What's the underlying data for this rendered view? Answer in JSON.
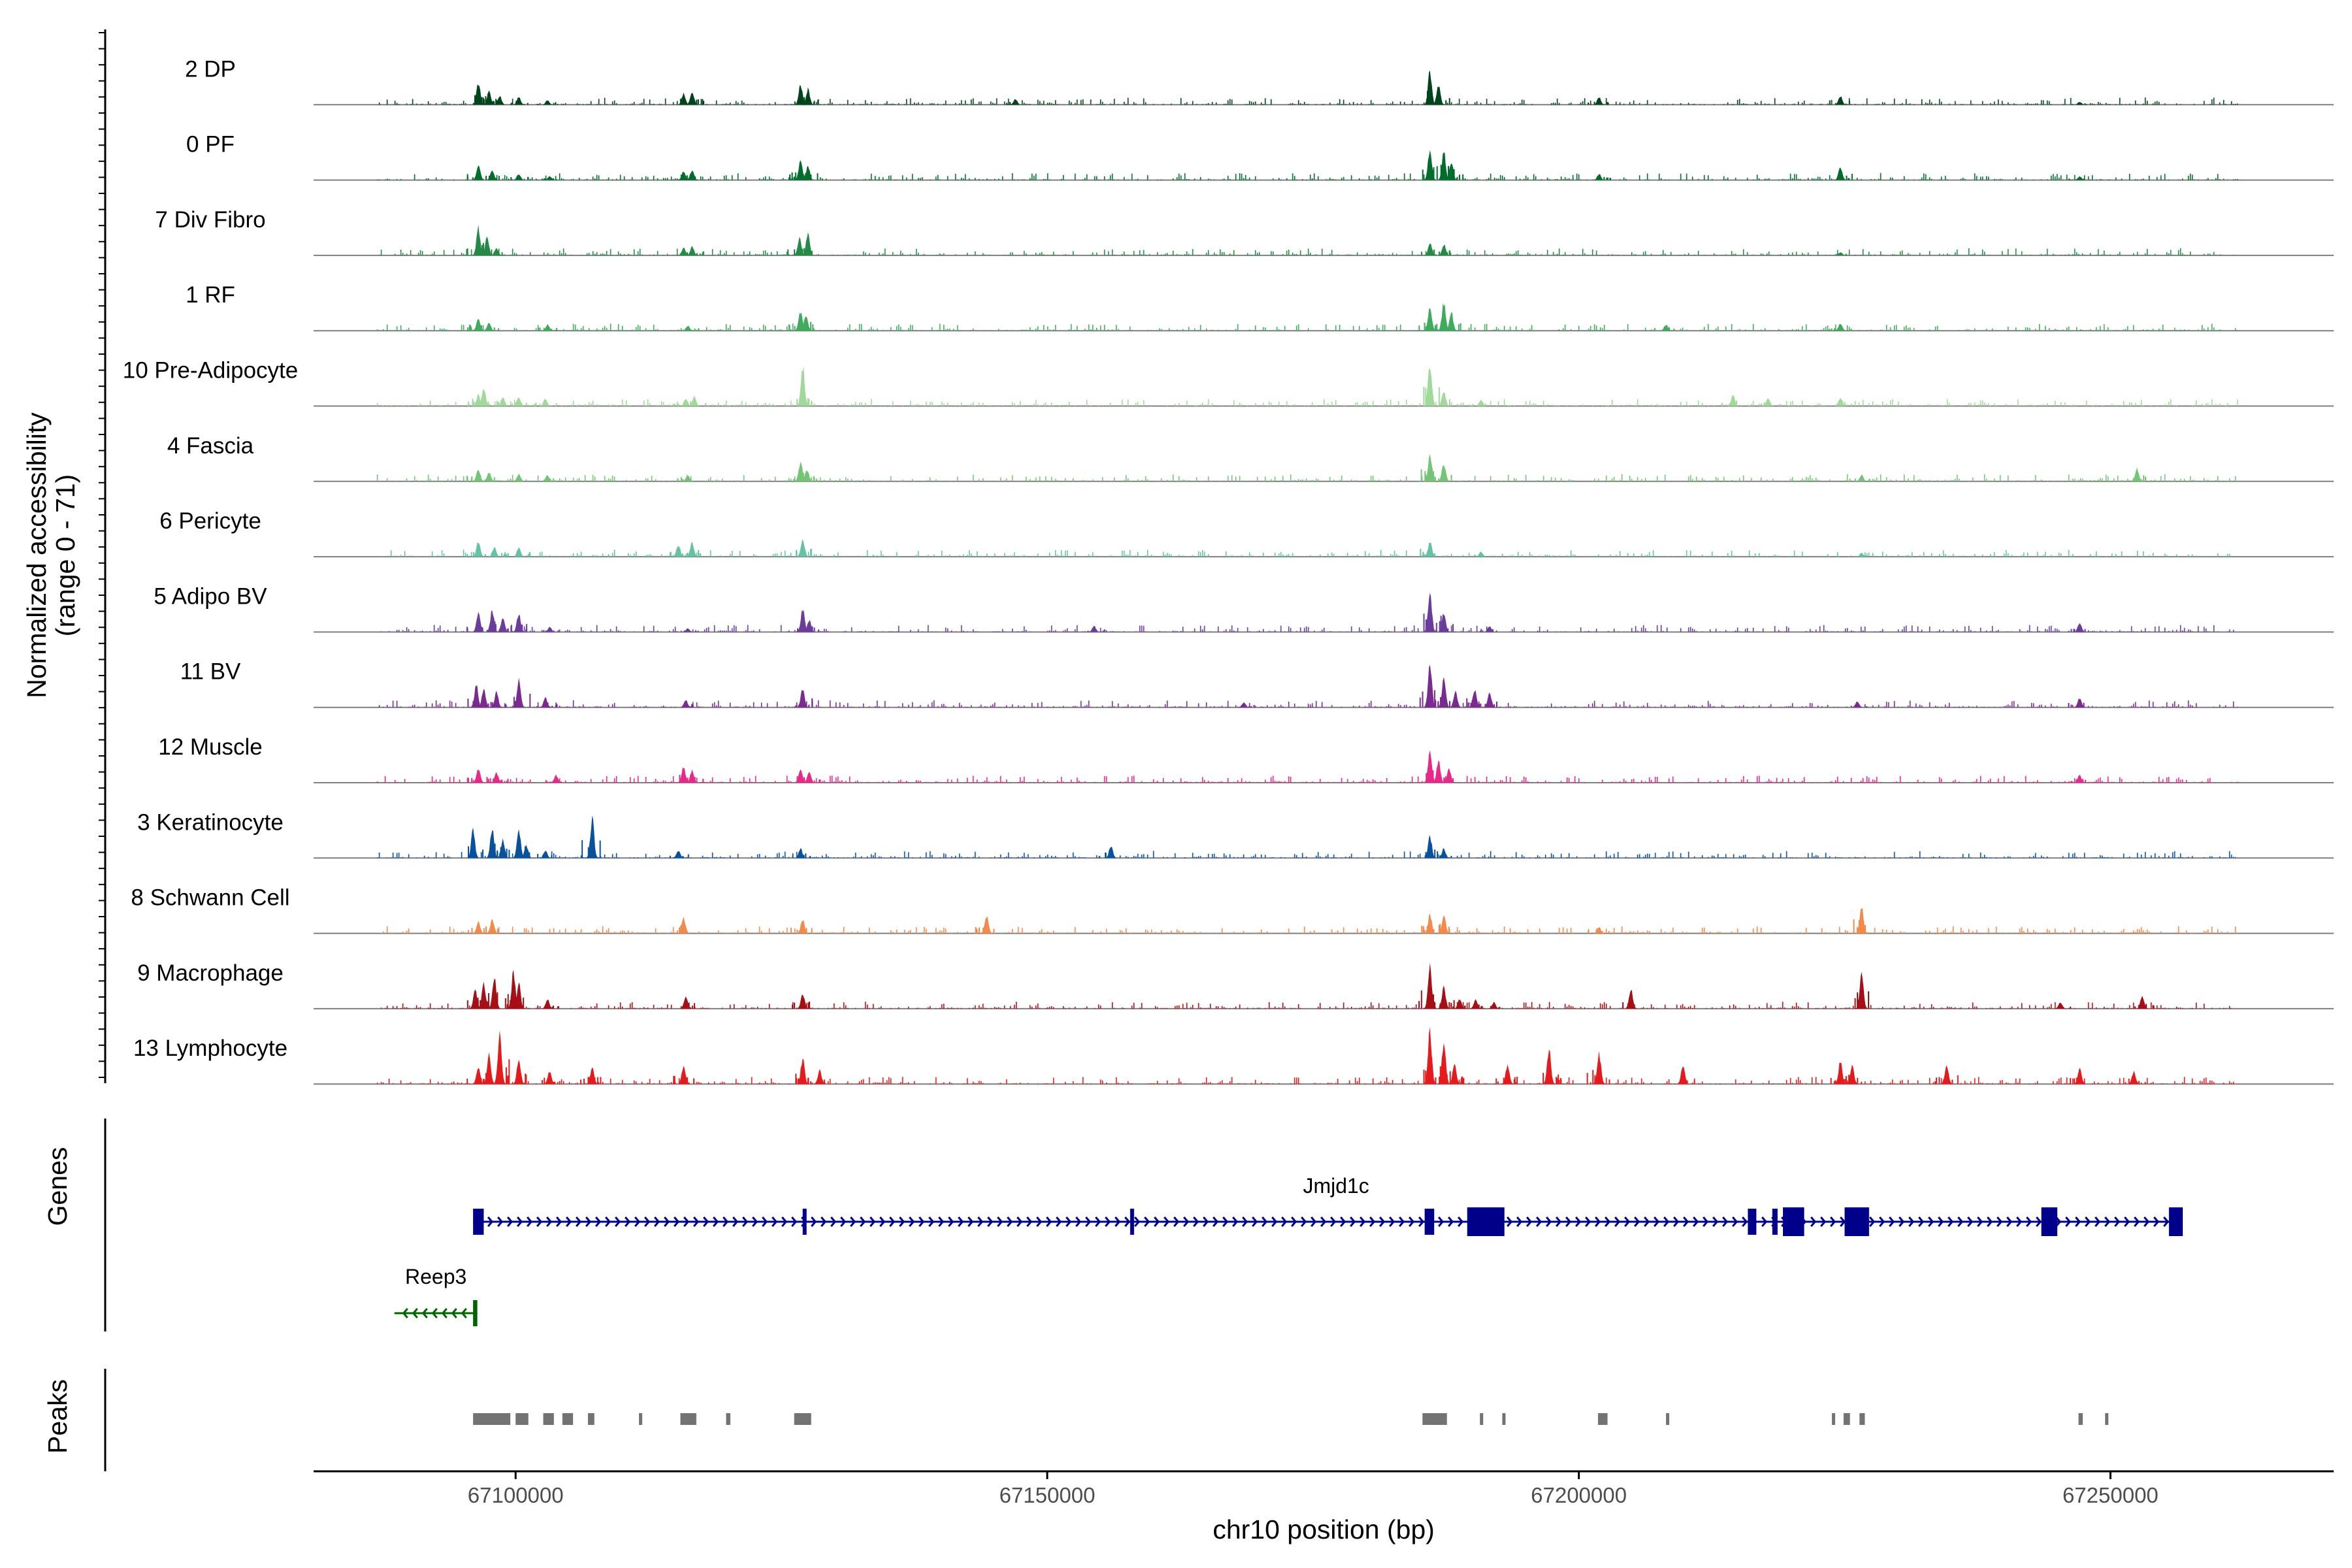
{
  "chart_data": {
    "type": "area",
    "title": "",
    "ylabel_line1": "Normalized accessibility",
    "ylabel_line2": "(range 0 - 71)",
    "y_range": [
      0,
      71
    ],
    "xlabel": "chr10 position (bp)",
    "x_range": [
      67081000,
      67271000
    ],
    "x_ticks": [
      67100000,
      67150000,
      67200000,
      67250000
    ],
    "x_tick_labels": [
      "67100000",
      "67150000",
      "67200000",
      "67250000"
    ],
    "track_region": [
      67087000,
      67262000
    ],
    "genes_label": "Genes",
    "peaks_label": "Peaks",
    "tracks": [
      {
        "name": "2 DP",
        "color": "#00441b",
        "peaks": [
          [
            67096500,
            0.35
          ],
          [
            67097500,
            0.22
          ],
          [
            67098500,
            0.14
          ],
          [
            67100300,
            0.12
          ],
          [
            67103000,
            0.07
          ],
          [
            67115800,
            0.18
          ],
          [
            67116600,
            0.22
          ],
          [
            67126800,
            0.32
          ],
          [
            67127500,
            0.25
          ],
          [
            67147000,
            0.09
          ],
          [
            67186000,
            0.55
          ],
          [
            67186800,
            0.3
          ],
          [
            67201900,
            0.12
          ],
          [
            67224600,
            0.14
          ],
          [
            67247100,
            0.05
          ]
        ]
      },
      {
        "name": "0 PF",
        "color": "#006d2c",
        "peaks": [
          [
            67096500,
            0.25
          ],
          [
            67097800,
            0.15
          ],
          [
            67100300,
            0.1
          ],
          [
            67103200,
            0.06
          ],
          [
            67115800,
            0.14
          ],
          [
            67116600,
            0.16
          ],
          [
            67126800,
            0.3
          ],
          [
            67127500,
            0.22
          ],
          [
            67186000,
            0.5
          ],
          [
            67187300,
            0.45
          ],
          [
            67188000,
            0.3
          ],
          [
            67201900,
            0.1
          ],
          [
            67224600,
            0.22
          ],
          [
            67247100,
            0.06
          ]
        ]
      },
      {
        "name": "7 Div Fibro",
        "color": "#238b45",
        "peaks": [
          [
            67096500,
            0.45
          ],
          [
            67097300,
            0.3
          ],
          [
            67098200,
            0.12
          ],
          [
            67115800,
            0.12
          ],
          [
            67116600,
            0.14
          ],
          [
            67126700,
            0.28
          ],
          [
            67127500,
            0.35
          ],
          [
            67186000,
            0.2
          ],
          [
            67187300,
            0.18
          ],
          [
            67224600,
            0.05
          ]
        ]
      },
      {
        "name": "1 RF",
        "color": "#41ab5d",
        "peaks": [
          [
            67096500,
            0.2
          ],
          [
            67097500,
            0.12
          ],
          [
            67103000,
            0.1
          ],
          [
            67116200,
            0.08
          ],
          [
            67126800,
            0.3
          ],
          [
            67127300,
            0.25
          ],
          [
            67186000,
            0.4
          ],
          [
            67187300,
            0.45
          ],
          [
            67188000,
            0.3
          ],
          [
            67208200,
            0.1
          ],
          [
            67224600,
            0.12
          ]
        ]
      },
      {
        "name": "10 Pre-Adipocyte",
        "color": "#a1d99b",
        "peaks": [
          [
            67096500,
            0.18
          ],
          [
            67097000,
            0.3
          ],
          [
            67098800,
            0.15
          ],
          [
            67100300,
            0.15
          ],
          [
            67102800,
            0.12
          ],
          [
            67116000,
            0.12
          ],
          [
            67116800,
            0.16
          ],
          [
            67127000,
            0.65
          ],
          [
            67186000,
            0.7
          ],
          [
            67187300,
            0.25
          ],
          [
            67190800,
            0.1
          ],
          [
            67214500,
            0.18
          ],
          [
            67217800,
            0.12
          ],
          [
            67224600,
            0.14
          ]
        ]
      },
      {
        "name": "4 Fascia",
        "color": "#74c476",
        "peaks": [
          [
            67096500,
            0.2
          ],
          [
            67097500,
            0.15
          ],
          [
            67100300,
            0.12
          ],
          [
            67103000,
            0.1
          ],
          [
            67116200,
            0.1
          ],
          [
            67126800,
            0.3
          ],
          [
            67127400,
            0.2
          ],
          [
            67186000,
            0.45
          ],
          [
            67187300,
            0.3
          ],
          [
            67226600,
            0.1
          ],
          [
            67252500,
            0.2
          ]
        ]
      },
      {
        "name": "6 Pericyte",
        "color": "#66c2a4",
        "peaks": [
          [
            67096500,
            0.25
          ],
          [
            67098000,
            0.15
          ],
          [
            67100300,
            0.15
          ],
          [
            67115300,
            0.2
          ],
          [
            67116600,
            0.22
          ],
          [
            67127000,
            0.3
          ],
          [
            67186000,
            0.25
          ],
          [
            67190800,
            0.08
          ],
          [
            67226600,
            0.06
          ]
        ]
      },
      {
        "name": "5 Adipo BV",
        "color": "#6a3d9a",
        "peaks": [
          [
            67096500,
            0.3
          ],
          [
            67097800,
            0.35
          ],
          [
            67098800,
            0.25
          ],
          [
            67100300,
            0.3
          ],
          [
            67103200,
            0.08
          ],
          [
            67116200,
            0.06
          ],
          [
            67127000,
            0.38
          ],
          [
            67127600,
            0.2
          ],
          [
            67154400,
            0.1
          ],
          [
            67186000,
            0.65
          ],
          [
            67187300,
            0.3
          ],
          [
            67191600,
            0.1
          ],
          [
            67247100,
            0.15
          ]
        ]
      },
      {
        "name": "11 BV",
        "color": "#7a2b8f",
        "peaks": [
          [
            67096300,
            0.35
          ],
          [
            67097000,
            0.3
          ],
          [
            67098200,
            0.25
          ],
          [
            67100300,
            0.45
          ],
          [
            67102800,
            0.15
          ],
          [
            67116000,
            0.12
          ],
          [
            67127000,
            0.3
          ],
          [
            67168500,
            0.08
          ],
          [
            67186000,
            0.75
          ],
          [
            67187300,
            0.45
          ],
          [
            67188400,
            0.25
          ],
          [
            67190200,
            0.3
          ],
          [
            67191600,
            0.25
          ],
          [
            67226200,
            0.1
          ],
          [
            67247100,
            0.15
          ]
        ]
      },
      {
        "name": "12 Muscle",
        "color": "#e7298a",
        "peaks": [
          [
            67096500,
            0.22
          ],
          [
            67098200,
            0.16
          ],
          [
            67103800,
            0.12
          ],
          [
            67115800,
            0.25
          ],
          [
            67116600,
            0.2
          ],
          [
            67126800,
            0.22
          ],
          [
            67127600,
            0.18
          ],
          [
            67186000,
            0.55
          ],
          [
            67186800,
            0.35
          ],
          [
            67187800,
            0.22
          ],
          [
            67247100,
            0.12
          ]
        ]
      },
      {
        "name": "3 Keratinocyte",
        "color": "#08519c",
        "peaks": [
          [
            67096000,
            0.45
          ],
          [
            67097800,
            0.5
          ],
          [
            67098800,
            0.3
          ],
          [
            67100300,
            0.45
          ],
          [
            67101000,
            0.2
          ],
          [
            67102800,
            0.12
          ],
          [
            67107200,
            0.65
          ],
          [
            67115300,
            0.12
          ],
          [
            67126800,
            0.15
          ],
          [
            67156000,
            0.2
          ],
          [
            67186000,
            0.35
          ],
          [
            67187300,
            0.15
          ]
        ]
      },
      {
        "name": "8 Schwann Cell",
        "color": "#f28a4b",
        "peaks": [
          [
            67096500,
            0.18
          ],
          [
            67097800,
            0.22
          ],
          [
            67115800,
            0.25
          ],
          [
            67127000,
            0.22
          ],
          [
            67144300,
            0.28
          ],
          [
            67186000,
            0.3
          ],
          [
            67187300,
            0.3
          ],
          [
            67201900,
            0.1
          ],
          [
            67226600,
            0.45
          ]
        ]
      },
      {
        "name": "9 Macrophage",
        "color": "#a50f15",
        "peaks": [
          [
            67096200,
            0.3
          ],
          [
            67097000,
            0.4
          ],
          [
            67098000,
            0.55
          ],
          [
            67099800,
            0.6
          ],
          [
            67100300,
            0.4
          ],
          [
            67103000,
            0.15
          ],
          [
            67116000,
            0.2
          ],
          [
            67127000,
            0.25
          ],
          [
            67186000,
            0.65
          ],
          [
            67187300,
            0.35
          ],
          [
            67188800,
            0.15
          ],
          [
            67190300,
            0.15
          ],
          [
            67192000,
            0.1
          ],
          [
            67204900,
            0.3
          ],
          [
            67226600,
            0.55
          ],
          [
            67245300,
            0.1
          ],
          [
            67253000,
            0.2
          ]
        ]
      },
      {
        "name": "13 Lymphocyte",
        "color": "#e41a1c",
        "peaks": [
          [
            67096500,
            0.28
          ],
          [
            67097500,
            0.5
          ],
          [
            67098500,
            0.8
          ],
          [
            67100300,
            0.38
          ],
          [
            67103200,
            0.2
          ],
          [
            67107200,
            0.25
          ],
          [
            67115800,
            0.3
          ],
          [
            67127000,
            0.4
          ],
          [
            67128600,
            0.22
          ],
          [
            67186000,
            0.85
          ],
          [
            67187300,
            0.7
          ],
          [
            67188300,
            0.3
          ],
          [
            67193300,
            0.3
          ],
          [
            67197200,
            0.55
          ],
          [
            67201900,
            0.5
          ],
          [
            67209800,
            0.3
          ],
          [
            67224600,
            0.35
          ],
          [
            67225700,
            0.3
          ],
          [
            67234600,
            0.3
          ],
          [
            67247100,
            0.25
          ],
          [
            67252200,
            0.2
          ]
        ]
      }
    ],
    "genes": [
      {
        "name": "Jmjd1c",
        "strand": "+",
        "color": "#00008b",
        "start": 67096000,
        "end": 67256800,
        "exons": [
          [
            67096000,
            67097000
          ],
          [
            67127000,
            67127300
          ],
          [
            67157800,
            67158100
          ],
          [
            67185500,
            67186400
          ],
          [
            67189500,
            67193000
          ],
          [
            67215900,
            67216700
          ],
          [
            67218200,
            67218700
          ],
          [
            67219200,
            67221200
          ],
          [
            67225000,
            67227300
          ],
          [
            67243500,
            67245000
          ],
          [
            67255500,
            67256800
          ]
        ]
      },
      {
        "name": "Reep3",
        "strand": "-",
        "color": "#006400",
        "start": 67088600,
        "end": 67096400,
        "exons": [
          [
            67096000,
            67096400
          ]
        ]
      }
    ],
    "peak_regions": [
      [
        67096000,
        67099500
      ],
      [
        67100000,
        67101200
      ],
      [
        67102600,
        67103600
      ],
      [
        67104400,
        67105400
      ],
      [
        67106800,
        67107400
      ],
      [
        67111600,
        67111900
      ],
      [
        67115500,
        67117000
      ],
      [
        67119800,
        67120200
      ],
      [
        67126200,
        67127800
      ],
      [
        67185300,
        67187600
      ],
      [
        67190700,
        67191000
      ],
      [
        67192800,
        67193100
      ],
      [
        67201800,
        67202700
      ],
      [
        67208200,
        67208500
      ],
      [
        67223800,
        67224100
      ],
      [
        67224900,
        67225500
      ],
      [
        67226400,
        67226900
      ],
      [
        67247000,
        67247400
      ],
      [
        67249500,
        67249800
      ]
    ]
  }
}
